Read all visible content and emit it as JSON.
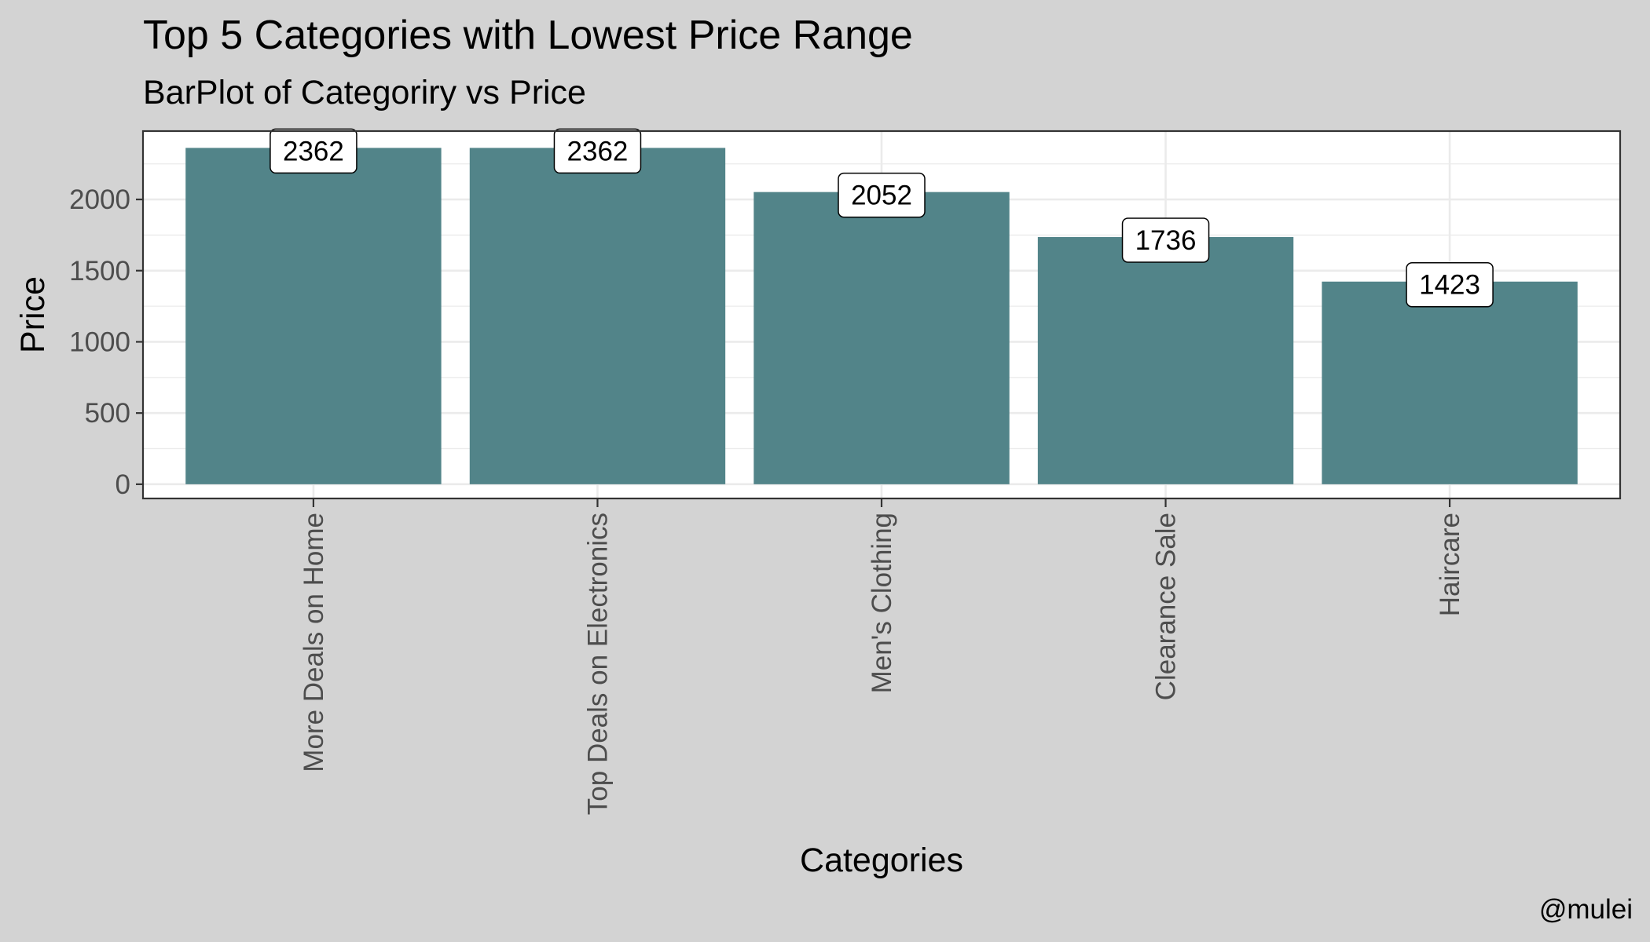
{
  "chart_data": {
    "type": "bar",
    "title": "Top 5 Categories with Lowest Price Range",
    "subtitle": "BarPlot of Categoriry vs Price",
    "xlabel": "Categories",
    "ylabel": "Price",
    "caption": "@mulei",
    "categories": [
      "More Deals on Home",
      "Top Deals on Electronics",
      "Men's Clothing",
      "Clearance Sale",
      "Haircare"
    ],
    "values": [
      2362,
      2362,
      2052,
      1736,
      1423
    ],
    "data_labels": [
      "2362",
      "2362",
      "2052",
      "1736",
      "1423"
    ],
    "ylim": [
      -100,
      2480
    ],
    "yticks": [
      0,
      500,
      1000,
      1500,
      2000
    ],
    "ytick_labels": [
      "0",
      "500",
      "1000",
      "1500",
      "2000"
    ],
    "yminor_ticks": [
      250,
      750,
      1250,
      1750,
      2250
    ],
    "grid": true,
    "legend": "none",
    "colors": {
      "background": "#d3d3d3",
      "panel": "#ffffff",
      "bar": "#528489",
      "grid": "#ebebeb",
      "border": "#333333",
      "text": "#000000",
      "tick_text": "#4d4d4d"
    }
  }
}
